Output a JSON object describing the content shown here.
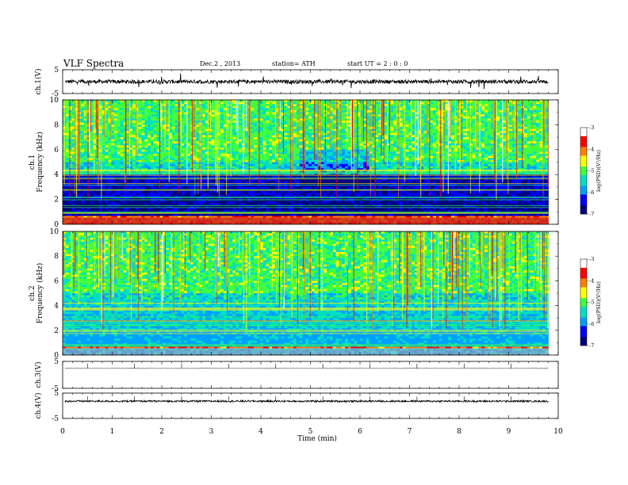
{
  "header": {
    "title": "VLF  Spectra",
    "date": "Dec.2  , 2013",
    "station": "station= ATH",
    "start": "start  UT  =   2  : 0  : 0"
  },
  "chart_data": [
    {
      "type": "line",
      "name": "ch1-waveform",
      "ylabel": "ch.1(V)",
      "ylim": [
        -5,
        5
      ],
      "yticks": [
        "5",
        "-5"
      ],
      "xlim": [
        0,
        10
      ],
      "data_end_min": 9.8,
      "baseline": 0,
      "noise_amplitude": 0.8
    },
    {
      "type": "heatmap",
      "name": "ch1-spectrogram",
      "ylabel": "ch.1\nFrequency  (kHz)",
      "ylim": [
        0,
        10
      ],
      "yticks": [
        "0",
        "2",
        "4",
        "6",
        "8",
        "10"
      ],
      "xlim": [
        0,
        10
      ],
      "data_end_min": 9.8,
      "colorbar_label": "log(PSD)(V²/Hz)",
      "colorbar_range": [
        -7,
        -3
      ],
      "colorbar_ticks": [
        "-3",
        "-4",
        "-5",
        "-6",
        "-7"
      ],
      "colormap": [
        "#000080",
        "#0000ff",
        "#00a0ff",
        "#00e0c0",
        "#40ff40",
        "#ffff00",
        "#ff8000",
        "#ff0000",
        "#ffffff"
      ]
    },
    {
      "type": "heatmap",
      "name": "ch2-spectrogram",
      "ylabel": "ch.2\nFrequency  (kHz)",
      "ylim": [
        0,
        10
      ],
      "yticks": [
        "0",
        "2",
        "4",
        "6",
        "8",
        "10"
      ],
      "xlim": [
        0,
        10
      ],
      "data_end_min": 9.8,
      "colorbar_label": "log(PSD)(V²/Hz)",
      "colorbar_range": [
        -7,
        -3
      ],
      "colorbar_ticks": [
        "-3",
        "-4",
        "-5",
        "-6",
        "-7"
      ],
      "colormap": [
        "#000080",
        "#0000ff",
        "#00a0ff",
        "#00e0c0",
        "#40ff40",
        "#ffff00",
        "#ff8000",
        "#ff0000",
        "#ffffff"
      ]
    },
    {
      "type": "line",
      "name": "ch3-waveform",
      "ylabel": "ch.3(V)",
      "ylim": [
        -5,
        5
      ],
      "yticks": [
        "5",
        "-5"
      ],
      "xlim": [
        0,
        10
      ],
      "data_end_min": 9.8,
      "baseline": 2.4,
      "noise_amplitude": 0.05
    },
    {
      "type": "line",
      "name": "ch4-waveform",
      "ylabel": "ch.4(V)",
      "ylim": [
        -5,
        5
      ],
      "yticks": [
        "5",
        "-5"
      ],
      "xlim": [
        0,
        10
      ],
      "data_end_min": 9.8,
      "baseline": 1.8,
      "noise_amplitude": 0.35
    }
  ],
  "xaxis": {
    "label": "Time  (min)",
    "ticks": [
      "0",
      "1",
      "2",
      "3",
      "4",
      "5",
      "6",
      "7",
      "8",
      "9",
      "10"
    ]
  }
}
